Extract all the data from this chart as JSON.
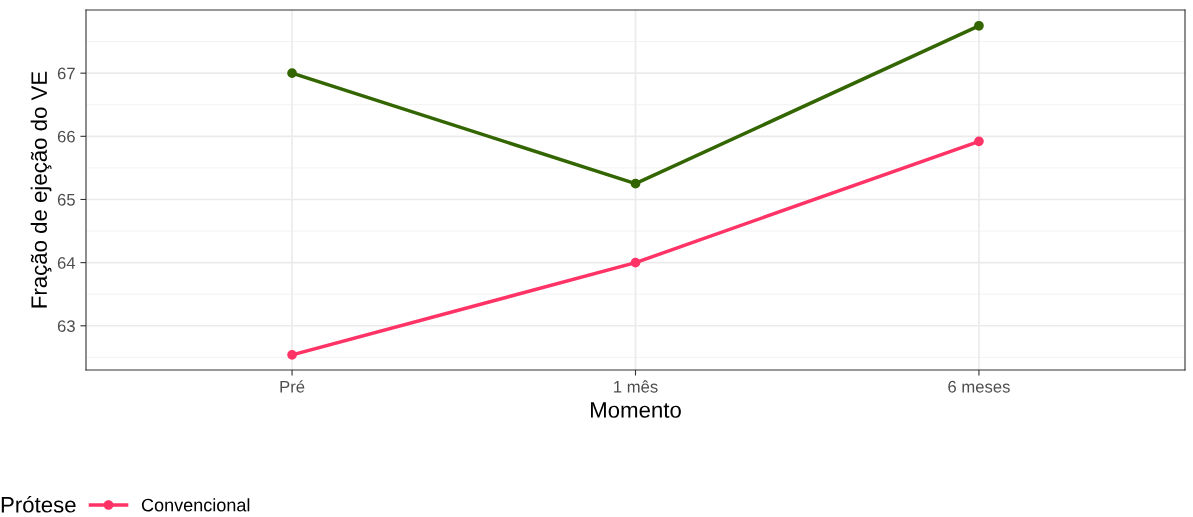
{
  "chart_data": {
    "type": "line",
    "xlabel": "Momento",
    "ylabel": "Fração de ejeção do VE",
    "legend_title": "Prótese",
    "categories": [
      "Pré",
      "1 mês",
      "6 meses"
    ],
    "series": [
      {
        "name": "Convencional",
        "color": "#ff3366",
        "values": [
          62.54,
          64.0,
          65.92
        ]
      },
      {
        "color": "#336600",
        "values": [
          67.0,
          65.25,
          67.75
        ]
      }
    ],
    "ylim": [
      62.3,
      68.0
    ],
    "yticks": [
      63,
      64,
      65,
      66,
      67
    ],
    "grid": true,
    "legend": "bottom",
    "marker": "circle",
    "line_style": "solid"
  }
}
